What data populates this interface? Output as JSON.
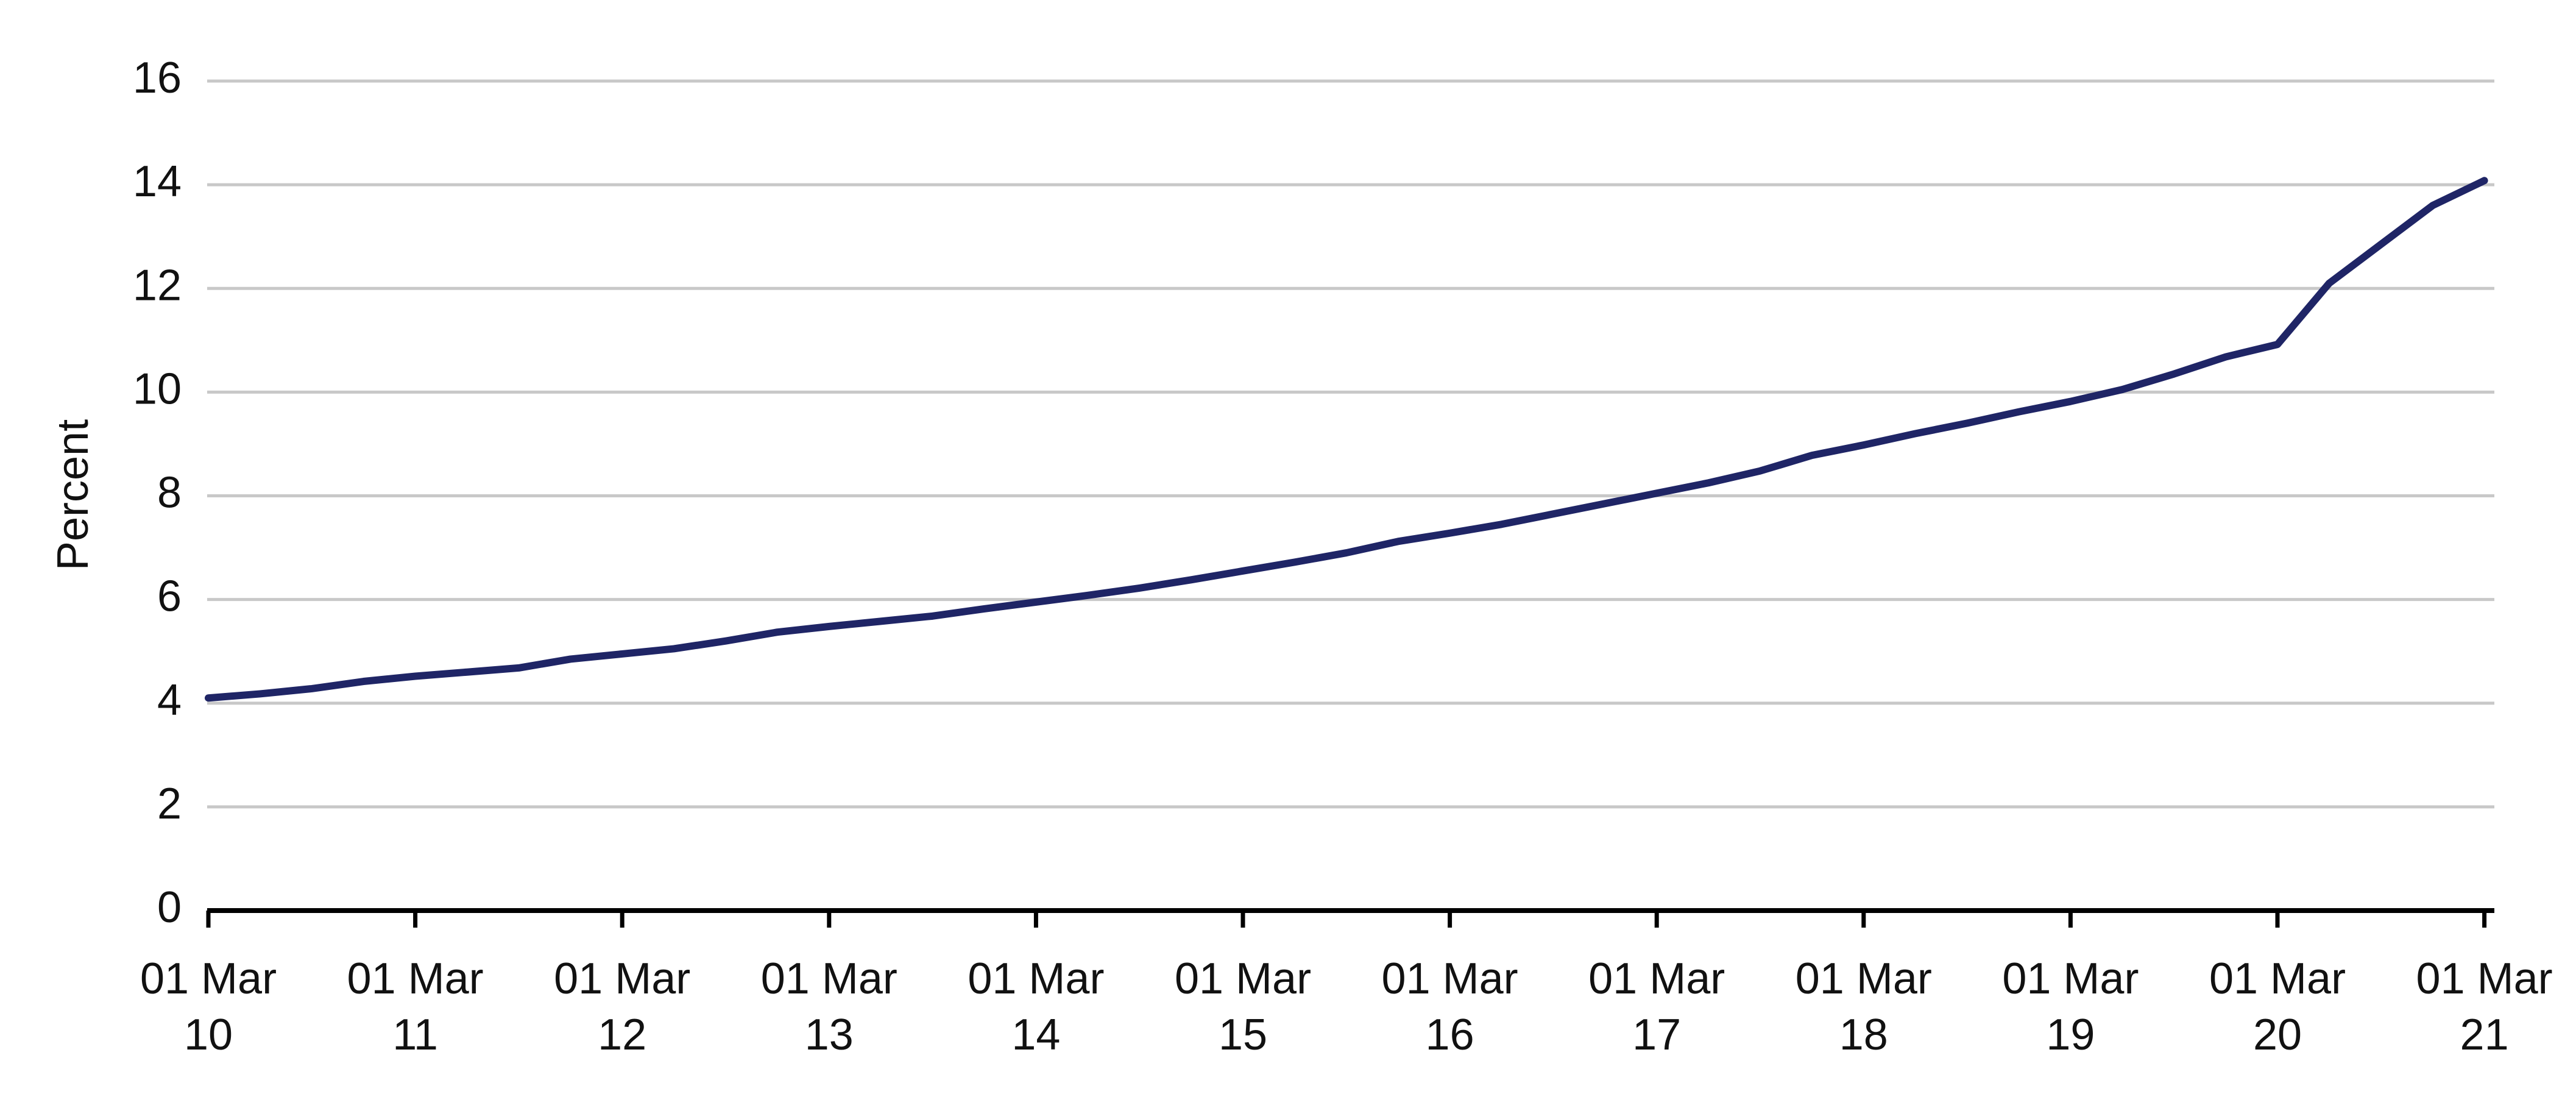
{
  "chart_data": {
    "type": "line",
    "y_label": "Percent",
    "categories": [
      "01 Mar\n10",
      null,
      null,
      null,
      "01 Mar\n11",
      null,
      null,
      null,
      "01 Mar\n12",
      null,
      null,
      null,
      "01 Mar\n13",
      null,
      null,
      null,
      "01 Mar\n14",
      null,
      null,
      null,
      "01 Mar\n15",
      null,
      null,
      null,
      "01 Mar\n16",
      null,
      null,
      null,
      "01 Mar\n17",
      null,
      null,
      null,
      "01 Mar\n18",
      null,
      null,
      null,
      "01 Mar\n19",
      null,
      null,
      null,
      "01 Mar\n20",
      null,
      null,
      null,
      "01 Mar\n21"
    ],
    "values": [
      4.1,
      4.18,
      4.28,
      4.42,
      4.52,
      4.6,
      4.68,
      4.85,
      4.95,
      5.05,
      5.2,
      5.37,
      5.48,
      5.58,
      5.68,
      5.82,
      5.95,
      6.08,
      6.22,
      6.38,
      6.55,
      6.72,
      6.9,
      7.12,
      7.28,
      7.45,
      7.65,
      7.85,
      8.05,
      8.25,
      8.48,
      8.78,
      8.98,
      9.2,
      9.4,
      9.62,
      9.82,
      10.05,
      10.35,
      10.68,
      10.92,
      12.1,
      12.85,
      13.6,
      14.08
    ],
    "color": "#1f2566",
    "ylim": [
      0,
      16
    ],
    "yticks": [
      0,
      2,
      4,
      6,
      8,
      10,
      12,
      14,
      16
    ],
    "grid": true
  }
}
